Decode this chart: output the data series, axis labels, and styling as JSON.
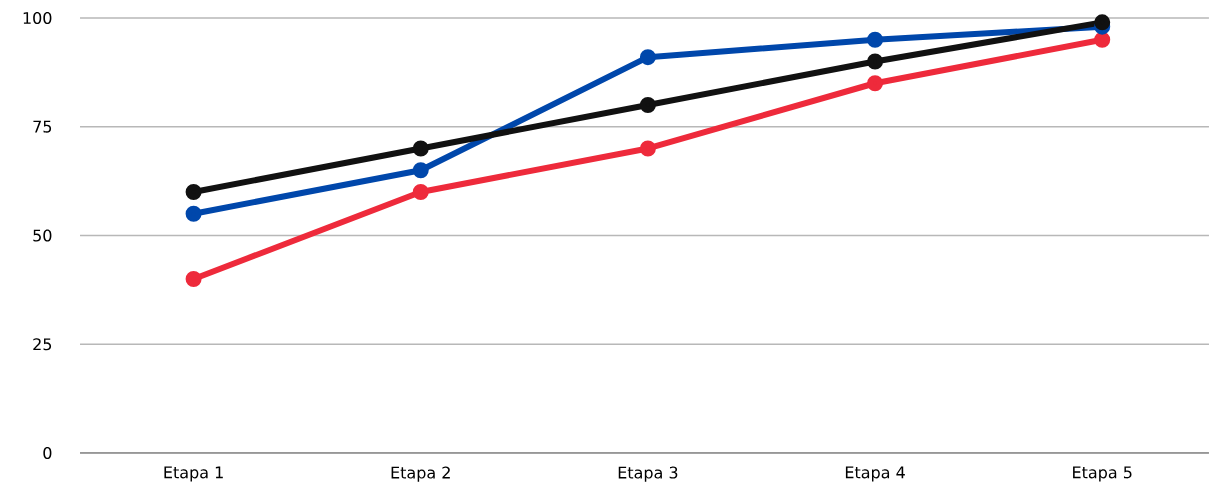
{
  "chart_data": {
    "type": "line",
    "categories": [
      "Etapa 1",
      "Etapa 2",
      "Etapa 3",
      "Etapa 4",
      "Etapa 5"
    ],
    "series": [
      {
        "color": "#111111",
        "values": [
          60,
          70,
          80,
          90,
          99
        ]
      },
      {
        "color": "#0047ab",
        "values": [
          55,
          65,
          91,
          95,
          98
        ]
      },
      {
        "color": "#ee2a3b",
        "values": [
          40,
          60,
          70,
          85,
          95
        ]
      }
    ],
    "ylim": [
      0,
      100
    ],
    "yticks": [
      0,
      25,
      50,
      75,
      100
    ],
    "grid": "y",
    "marker": "circle",
    "line_style": "solid"
  }
}
